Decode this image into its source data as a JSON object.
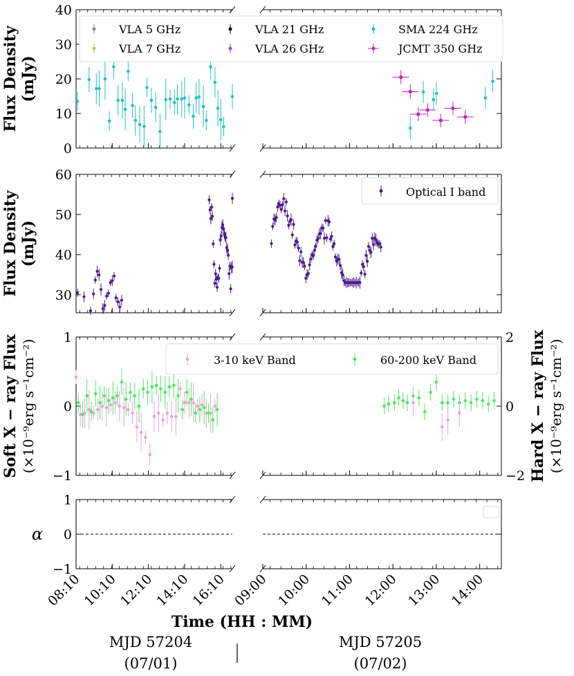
{
  "chart_data": {
    "type": "scatter",
    "x_label": "Time (HH : MM)",
    "day_labels": [
      {
        "mjd": "MJD 57204",
        "date": "(07/01)"
      },
      {
        "mjd": "MJD 57205",
        "date": "(07/02)"
      }
    ],
    "x_ticks_left": [
      "08:10",
      "10:10",
      "12:10",
      "14:10",
      "16:10"
    ],
    "x_ticks_right": [
      "09:00",
      "10:00",
      "11:00",
      "12:00",
      "13:00",
      "14:00"
    ],
    "colors": {
      "vla5": "#8a8a8a",
      "vla7": "#a8d22a",
      "vla21": "#000000",
      "vla26": "#8a4ce0",
      "sma": "#22c1c3",
      "jcmt": "#c21fc2",
      "optical": "#4b1a8a",
      "soft": "#e8a3d8",
      "hard": "#4cea5c",
      "alpha": "#000000"
    },
    "panels": [
      {
        "id": "radio",
        "ylabel": [
          "Flux Density",
          "(mJy)"
        ],
        "ylim": [
          0,
          40
        ],
        "yticks": [
          "0",
          "10",
          "20",
          "30",
          "40"
        ],
        "legend": [
          "VLA 5 GHz",
          "VLA 7 GHz",
          "VLA 21 GHz",
          "VLA 26 GHz",
          "SMA 224 GHz",
          "JCMT 350 GHz"
        ],
        "sma_left": {
          "x": [
            0.1,
            0.9,
            1.4,
            1.6,
            2.0,
            2.3,
            2.6,
            2.9,
            3.2,
            3.4,
            3.6,
            3.9,
            4.1,
            4.4,
            4.7,
            4.9,
            5.2,
            5.5,
            5.8,
            6.2,
            6.5,
            6.8,
            7.0,
            7.3,
            7.5,
            7.8,
            8.1,
            8.3,
            8.5,
            8.8,
            9.0,
            9.3,
            9.6,
            9.8,
            10.0,
            10.2,
            10.8
          ],
          "y": [
            13.5,
            19.8,
            17.2,
            17.2,
            20.0,
            7.8,
            23.5,
            13.8,
            13.8,
            11.2,
            22.2,
            12.3,
            8.0,
            6.8,
            6.3,
            17.5,
            13.8,
            11.8,
            4.8,
            14.0,
            14.2,
            13.2,
            14.2,
            14.2,
            14.5,
            12.5,
            9.2,
            14.5,
            14.8,
            12.0,
            8.0,
            23.5,
            19.0,
            11.5,
            8.2,
            6.2,
            14.9
          ]
        },
        "sma_right": {
          "x": [
            10.2,
            11.1,
            11.8,
            12.0,
            15.4,
            15.9
          ],
          "y": [
            5.8,
            16.2,
            14.0,
            15.8,
            14.5,
            19.3
          ]
        },
        "jcmt": {
          "x": [
            9.55,
            10.2,
            10.75,
            11.4,
            12.3,
            13.15,
            14.0
          ],
          "y": [
            20.5,
            16.3,
            9.8,
            11.0,
            8.0,
            11.5,
            9.0
          ]
        },
        "vla_start": 10.8,
        "vla_end": 14.1
      },
      {
        "id": "optical",
        "ylabel": [
          "Flux Density",
          "(mJy)"
        ],
        "ylim": [
          25.5,
          60
        ],
        "yticks": [
          "30",
          "40",
          "50",
          "60"
        ],
        "legend": [
          "Optical I band"
        ]
      },
      {
        "id": "xray",
        "ylabel": [
          "Soft X − ray Flux",
          "(×10⁻⁹erg s⁻¹cm⁻²)"
        ],
        "ylabel_right": [
          "Hard X − ray Flux",
          "(×10⁻⁹erg s⁻¹cm⁻²)"
        ],
        "ylim": [
          -1,
          1
        ],
        "yticks": [
          "−1",
          "0",
          "1"
        ],
        "yticks_right": [
          "−2",
          "0",
          "2"
        ],
        "legend": [
          "3-10 keV Band",
          "60-200 keV Band"
        ],
        "soft_left": {
          "x": [
            0.0,
            0.3,
            0.6,
            0.9,
            1.2,
            1.5,
            1.8,
            2.1,
            2.4,
            2.7,
            3.0,
            3.3,
            3.6,
            3.9,
            4.2,
            4.5,
            4.8,
            5.1,
            5.4,
            5.7,
            6.0,
            6.3,
            6.6,
            6.9,
            7.2,
            7.5,
            7.8,
            8.1,
            8.4,
            8.7,
            9.0,
            9.3,
            9.6
          ],
          "y": [
            0.42,
            -0.12,
            -0.1,
            -0.05,
            -0.1,
            -0.05,
            0.0,
            -0.02,
            0.02,
            0.05,
            0.0,
            -0.02,
            -0.05,
            -0.1,
            -0.3,
            -0.38,
            -0.45,
            -0.7,
            -0.15,
            -0.1,
            -0.2,
            -0.1,
            -0.15,
            -0.15,
            0.25,
            0.05,
            0.05,
            0.05,
            0.0,
            0.02,
            -0.1,
            -0.1,
            0.0
          ]
        },
        "hard_left": {
          "x": [
            0.15,
            0.45,
            0.75,
            1.05,
            1.35,
            1.65,
            1.95,
            2.25,
            2.55,
            2.85,
            3.15,
            3.45,
            3.75,
            4.05,
            4.35,
            4.65,
            4.95,
            5.25,
            5.55,
            5.85,
            6.15,
            6.45,
            6.75,
            7.05,
            7.35,
            7.65,
            7.95,
            8.25,
            8.55,
            8.85,
            9.15,
            9.45,
            9.75
          ],
          "y": [
            0.05,
            -0.12,
            0.15,
            -0.08,
            0.18,
            0.05,
            0.15,
            0.08,
            0.12,
            0.15,
            0.35,
            0.1,
            0.2,
            0.15,
            0.0,
            0.25,
            0.2,
            0.28,
            0.3,
            0.25,
            0.2,
            0.28,
            0.3,
            0.15,
            -0.05,
            0.2,
            0.1,
            -0.1,
            -0.05,
            -0.02,
            -0.1,
            -0.2,
            -0.05
          ]
        },
        "soft_right": {
          "x": [
            10.4,
            12.4,
            12.8,
            13.6
          ],
          "y": [
            0.05,
            -0.3,
            -0.2,
            -0.1
          ]
        },
        "hard_right": {
          "x": [
            8.4,
            8.7,
            9.1,
            9.4,
            9.7,
            10.0,
            10.4,
            10.8,
            11.2,
            11.6,
            12.0,
            12.4,
            12.8,
            13.2,
            13.6,
            14.0,
            14.4,
            14.8,
            15.2,
            15.6,
            16.0
          ],
          "y": [
            0.0,
            0.03,
            0.05,
            0.12,
            0.08,
            0.05,
            0.15,
            0.12,
            -0.08,
            0.2,
            0.35,
            0.05,
            0.05,
            0.1,
            0.05,
            0.08,
            0.05,
            0.1,
            0.08,
            0.03,
            0.08
          ]
        }
      },
      {
        "id": "alpha",
        "ylabel": [
          "α"
        ],
        "ylim": [
          -1,
          1
        ],
        "yticks": [
          "−1",
          "0",
          "1"
        ],
        "alpha_start": 10.8,
        "alpha_end": 14.1
      }
    ]
  }
}
